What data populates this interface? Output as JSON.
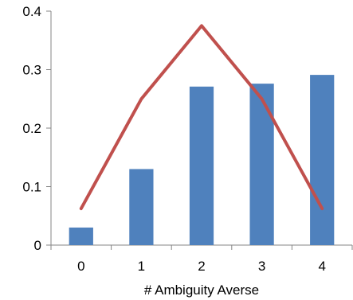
{
  "chart_data": {
    "type": "bar",
    "title": "",
    "xlabel": "# Ambiguity Averse",
    "ylabel": "",
    "categories": [
      "0",
      "1",
      "2",
      "3",
      "4"
    ],
    "ylim": [
      0,
      0.4
    ],
    "yticks": [
      0,
      0.1,
      0.2,
      0.3,
      0.4
    ],
    "ytick_labels": [
      "0",
      "0.1",
      "0.2",
      "0.3",
      "0.4"
    ],
    "grid": false,
    "legend": "none",
    "series": [
      {
        "type": "bar",
        "values": [
          0.03,
          0.13,
          0.271,
          0.276,
          0.291
        ],
        "color": "#4f81bd"
      },
      {
        "type": "line",
        "values": [
          0.0625,
          0.25,
          0.375,
          0.25,
          0.0625
        ],
        "color": "#c0504d"
      }
    ]
  }
}
